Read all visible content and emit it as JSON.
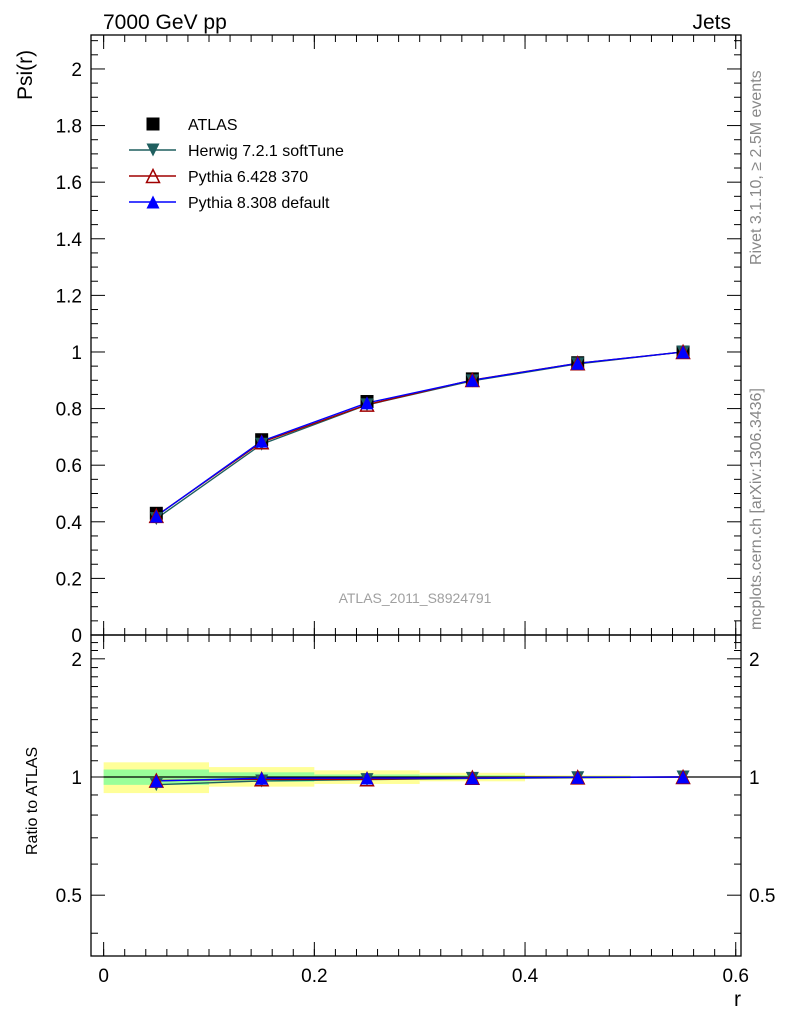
{
  "header": {
    "left": "7000 GeV pp",
    "right": "Jets"
  },
  "side": {
    "rivet": "Rivet 3.1.10, ≥ 2.5M events",
    "mcplots": "mcplots.cern.ch [arXiv:1306.3436]"
  },
  "analysis_label": "ATLAS_2011_S8924791",
  "colors": {
    "atlas": "#000000",
    "herwig": "#1f5f5f",
    "pythia6": "#a00000",
    "pythia8": "#0000ff",
    "band_inner": "#99ff99",
    "band_outer": "#ffff99"
  },
  "chart_data": [
    {
      "type": "line",
      "ylabel": "Psi(r)",
      "xlim": [
        -0.012,
        0.605
      ],
      "ylim": [
        0,
        2.12
      ],
      "yticks": [
        "0",
        "0.2",
        "0.4",
        "0.6",
        "0.8",
        "1",
        "1.2",
        "1.4",
        "1.6",
        "1.8",
        "2"
      ],
      "x": [
        0.05,
        0.15,
        0.25,
        0.35,
        0.45,
        0.55
      ],
      "series": [
        {
          "name": "ATLAS",
          "marker": "square",
          "values": [
            0.43,
            0.69,
            0.825,
            0.905,
            0.962,
            1.0
          ]
        },
        {
          "name": "Herwig 7.2.1 softTune",
          "marker": "triangle-down",
          "values": [
            0.411,
            0.674,
            0.813,
            0.898,
            0.958,
            1.0
          ]
        },
        {
          "name": "Pythia 6.428 370",
          "marker": "triangle-open",
          "values": [
            0.421,
            0.681,
            0.814,
            0.901,
            0.96,
            1.0
          ]
        },
        {
          "name": "Pythia 8.308 default",
          "marker": "triangle-up",
          "values": [
            0.42,
            0.685,
            0.82,
            0.9,
            0.96,
            1.0
          ]
        }
      ],
      "legend_position": "top-left"
    },
    {
      "type": "line",
      "ylabel": "Ratio to ATLAS",
      "xlabel": "r",
      "xlim": [
        -0.012,
        0.605
      ],
      "ylim": [
        0.35,
        2.3
      ],
      "yticks": [
        "0.5",
        "1",
        "2"
      ],
      "xticks": [
        "0",
        "0.2",
        "0.4",
        "0.6"
      ],
      "bands": {
        "edges": [
          0.0,
          0.1,
          0.2,
          0.3,
          0.4,
          0.5
        ],
        "inner": [
          [
            0.955,
            1.045
          ],
          [
            0.972,
            1.028
          ],
          [
            0.985,
            1.015
          ],
          [
            0.99,
            1.01
          ],
          [
            0.995,
            1.005
          ]
        ],
        "outer": [
          [
            0.91,
            1.09
          ],
          [
            0.945,
            1.06
          ],
          [
            0.96,
            1.04
          ],
          [
            0.975,
            1.025
          ],
          [
            0.99,
            1.01
          ]
        ]
      },
      "x": [
        0.05,
        0.15,
        0.25,
        0.35,
        0.45,
        0.55
      ],
      "series": [
        {
          "name": "Herwig 7.2.1 softTune",
          "values": [
            0.956,
            0.977,
            0.985,
            0.992,
            0.996,
            1.0
          ]
        },
        {
          "name": "Pythia 6.428 370",
          "values": [
            0.979,
            0.987,
            0.987,
            0.996,
            0.998,
            1.0
          ]
        },
        {
          "name": "Pythia 8.308 default",
          "values": [
            0.977,
            0.993,
            0.994,
            0.994,
            0.998,
            1.0
          ]
        }
      ]
    }
  ]
}
